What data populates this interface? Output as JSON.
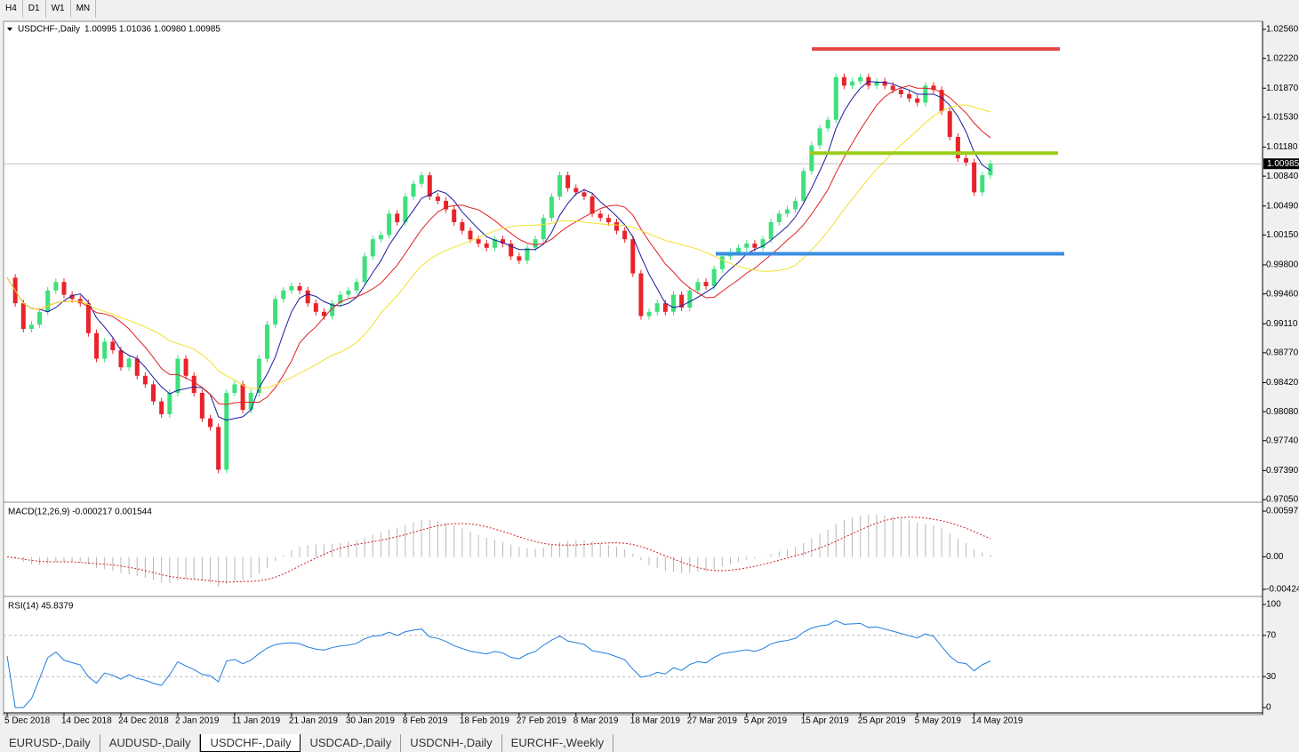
{
  "toolbar": [
    "H4",
    "D1",
    "W1",
    "MN"
  ],
  "tabs": [
    "EURUSD-,Daily",
    "AUDUSD-,Daily",
    "USDCHF-,Daily",
    "USDCAD-,Daily",
    "USDCNH-,Daily",
    "EURCHF-,Weekly"
  ],
  "chart_data": {
    "type": "candlestick",
    "title": "USDCHF-,Daily",
    "quote": "1.00995 1.01036 1.00980 1.00985",
    "current_price": {
      "value": 1.00985,
      "label": "1.00985"
    },
    "close": [
      0.9965,
      0.9935,
      0.9905,
      0.991,
      0.9925,
      0.995,
      0.996,
      0.9945,
      0.994,
      0.9935,
      0.99,
      0.987,
      0.989,
      0.988,
      0.986,
      0.987,
      0.985,
      0.984,
      0.982,
      0.9805,
      0.983,
      0.987,
      0.985,
      0.983,
      0.98,
      0.979,
      0.974,
      0.983,
      0.984,
      0.981,
      0.983,
      0.987,
      0.991,
      0.994,
      0.995,
      0.9955,
      0.995,
      0.9935,
      0.9925,
      0.992,
      0.9935,
      0.9945,
      0.995,
      0.996,
      0.999,
      1.001,
      1.0015,
      1.004,
      1.003,
      1.006,
      1.0075,
      1.0085,
      1.006,
      1.0055,
      1.0045,
      1.003,
      1.002,
      1.001,
      1.0005,
      1.0,
      1.001,
      1.0005,
      0.999,
      0.9985,
      1.0,
      1.001,
      1.0035,
      1.006,
      1.0085,
      1.007,
      1.0065,
      1.006,
      1.004,
      1.0035,
      1.003,
      1.002,
      1.001,
      0.997,
      0.992,
      0.9925,
      0.9935,
      0.9925,
      0.9945,
      0.993,
      0.995,
      0.996,
      0.9955,
      0.9975,
      0.999,
      0.9995,
      1.0,
      1.0005,
      1.0,
      1.001,
      1.003,
      1.004,
      1.0045,
      1.0055,
      1.009,
      1.012,
      1.014,
      1.015,
      1.02,
      1.019,
      1.0195,
      1.02,
      1.019,
      1.0195,
      1.019,
      1.0185,
      1.018,
      1.0175,
      1.017,
      1.019,
      1.0185,
      1.016,
      1.013,
      1.0105,
      1.01,
      1.0065,
      1.0085,
      1.00985
    ],
    "up_color": "#3ee07c",
    "down_color": "#e8232a",
    "levels": [
      {
        "value": 1.0233,
        "color": "#e84444"
      },
      {
        "value": 1.0111,
        "color": "#9ccc1a"
      },
      {
        "value": 0.9993,
        "color": "#3a8ee0"
      }
    ],
    "ylim": [
      0.9705,
      1.0256
    ],
    "yticks": [
      {
        "value": 1.0256,
        "label": "1.02560"
      },
      {
        "value": 1.0222,
        "label": "1.02220"
      },
      {
        "value": 1.0187,
        "label": "1.01870"
      },
      {
        "value": 1.0153,
        "label": "1.01530"
      },
      {
        "value": 1.0118,
        "label": "1.01180"
      },
      {
        "value": 1.0084,
        "label": "1.00840"
      },
      {
        "value": 1.0049,
        "label": "1.00490"
      },
      {
        "value": 1.0015,
        "label": "1.00150"
      },
      {
        "value": 0.998,
        "label": "0.99800"
      },
      {
        "value": 0.9946,
        "label": "0.99460"
      },
      {
        "value": 0.9911,
        "label": "0.99110"
      },
      {
        "value": 0.9877,
        "label": "0.98770"
      },
      {
        "value": 0.9842,
        "label": "0.98420"
      },
      {
        "value": 0.9808,
        "label": "0.98080"
      },
      {
        "value": 0.9774,
        "label": "0.97740"
      },
      {
        "value": 0.9739,
        "label": "0.97390"
      },
      {
        "value": 0.9705,
        "label": "0.97050"
      }
    ],
    "xticks": [
      {
        "value": 0,
        "label": "5 Dec 2018"
      },
      {
        "value": 7,
        "label": "14 Dec 2018"
      },
      {
        "value": 14,
        "label": "24 Dec 2018"
      },
      {
        "value": 21,
        "label": "2 Jan 2019"
      },
      {
        "value": 28,
        "label": "11 Jan 2019"
      },
      {
        "value": 35,
        "label": "21 Jan 2019"
      },
      {
        "value": 42,
        "label": "30 Jan 2019"
      },
      {
        "value": 49,
        "label": "8 Feb 2019"
      },
      {
        "value": 56,
        "label": "18 Feb 2019"
      },
      {
        "value": 63,
        "label": "27 Feb 2019"
      },
      {
        "value": 70,
        "label": "8 Mar 2019"
      },
      {
        "value": 77,
        "label": "18 Mar 2019"
      },
      {
        "value": 84,
        "label": "27 Mar 2019"
      },
      {
        "value": 91,
        "label": "5 Apr 2019"
      },
      {
        "value": 98,
        "label": "15 Apr 2019"
      },
      {
        "value": 105,
        "label": "25 Apr 2019"
      },
      {
        "value": 112,
        "label": "5 May 2019"
      },
      {
        "value": 119,
        "label": "14 May 2019"
      }
    ],
    "macd": {
      "title": "MACD(12,26,9) -0.000217 0.001544",
      "ylim": [
        -0.00424,
        0.00597
      ],
      "yticks": [
        {
          "value": 0.00597,
          "label": "0.00597"
        },
        {
          "value": 0,
          "label": "0.00"
        },
        {
          "value": -0.00424,
          "label": "-0.00424"
        }
      ]
    },
    "rsi": {
      "title": "RSI(14) 45.8379",
      "ylim": [
        0,
        100
      ],
      "yticks": [
        100,
        70,
        30,
        0
      ],
      "levels": [
        70,
        30
      ],
      "color": "#1e7ee0"
    }
  }
}
